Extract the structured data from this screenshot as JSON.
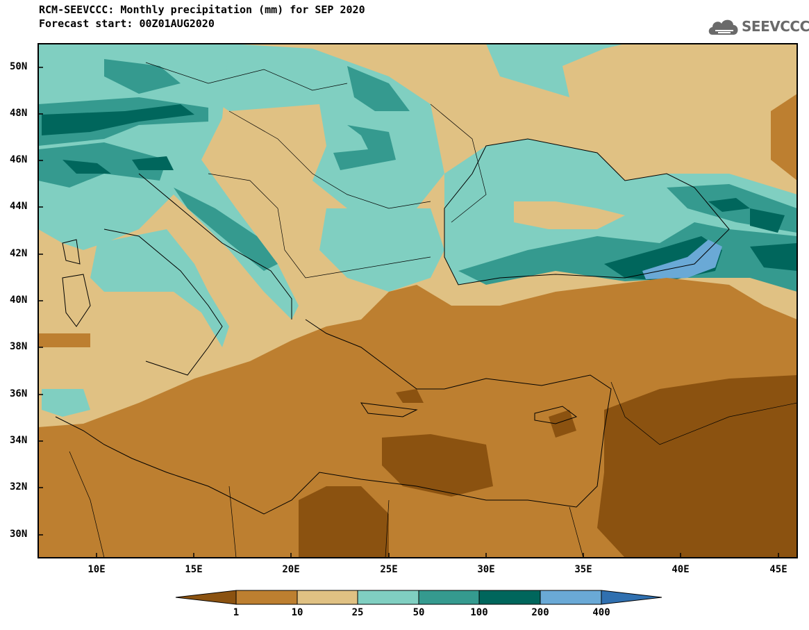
{
  "title": {
    "line1": "RCM-SEEVCCC: Monthly precipitation (mm) for SEP 2020",
    "line2": "Forecast start: 00Z01AUG2020"
  },
  "logo": {
    "text": "SEEVCCC",
    "icon": "cloud-logo-icon",
    "color": "#6a6a6a"
  },
  "map": {
    "lat_ticks": [
      "50N",
      "48N",
      "46N",
      "44N",
      "42N",
      "40N",
      "38N",
      "36N",
      "34N",
      "32N",
      "30N"
    ],
    "lon_ticks": [
      "10E",
      "15E",
      "20E",
      "25E",
      "30E",
      "35E",
      "40E",
      "45E"
    ]
  },
  "colorbar": {
    "labels": [
      "1",
      "10",
      "25",
      "50",
      "100",
      "200",
      "400"
    ],
    "colors": [
      "#8b5210",
      "#bd7f30",
      "#e0c183",
      "#80cfc1",
      "#359a8f",
      "#00665c",
      "#6aa9d6",
      "#3070b0"
    ]
  },
  "chart_data": {
    "type": "heatmap",
    "title": "RCM-SEEVCCC: Monthly precipitation (mm) for SEP 2020",
    "subtitle": "Forecast start: 00Z01AUG2020",
    "units": "mm",
    "levels": [
      1,
      10,
      25,
      50,
      100,
      200,
      400
    ],
    "lon_range": [
      7,
      46
    ],
    "lat_range": [
      29,
      51
    ],
    "lon_ticks": [
      10,
      15,
      20,
      25,
      30,
      35,
      40,
      45
    ],
    "lat_ticks": [
      30,
      32,
      34,
      36,
      38,
      40,
      42,
      44,
      46,
      48,
      50
    ]
  }
}
